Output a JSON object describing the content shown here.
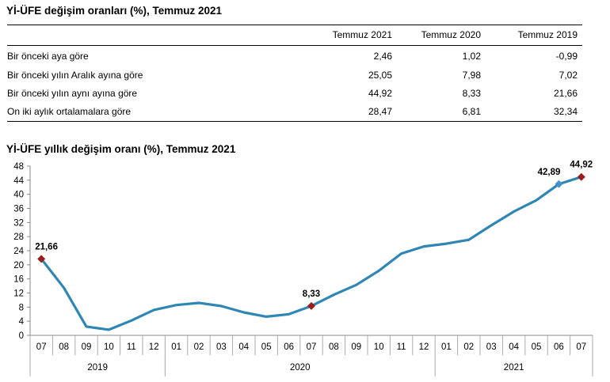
{
  "table": {
    "title": "Yİ-ÜFE değişim oranları (%), Temmuz 2021",
    "headers": [
      "Temmuz 2021",
      "Temmuz 2020",
      "Temmuz 2019"
    ],
    "rows": [
      {
        "label": "Bir önceki aya göre",
        "values": [
          "2,46",
          "1,02",
          "-0,99"
        ]
      },
      {
        "label": "Bir önceki yılın Aralık ayına göre",
        "values": [
          "25,05",
          "7,98",
          "7,02"
        ]
      },
      {
        "label": "Bir önceki yılın aynı ayına göre",
        "values": [
          "44,92",
          "8,33",
          "21,66"
        ]
      },
      {
        "label": "On iki aylık ortalamalara göre",
        "values": [
          "28,47",
          "6,81",
          "32,34"
        ]
      }
    ]
  },
  "chart_data": {
    "type": "line",
    "title": "Yİ-ÜFE yıllık değişim oranı (%), Temmuz 2021",
    "categories": [
      "07",
      "08",
      "09",
      "10",
      "11",
      "12",
      "01",
      "02",
      "03",
      "04",
      "05",
      "06",
      "07",
      "08",
      "09",
      "10",
      "11",
      "12",
      "01",
      "02",
      "03",
      "04",
      "05",
      "06",
      "07"
    ],
    "year_groups": [
      {
        "label": "2019",
        "start": 0,
        "end": 5
      },
      {
        "label": "2020",
        "start": 6,
        "end": 17
      },
      {
        "label": "2021",
        "start": 18,
        "end": 24
      }
    ],
    "values": [
      21.66,
      13.5,
      2.5,
      1.6,
      4.2,
      7.2,
      8.6,
      9.2,
      8.3,
      6.5,
      5.3,
      6.0,
      8.33,
      11.5,
      14.3,
      18.3,
      23.2,
      25.2,
      26.0,
      27.1,
      31.2,
      35.1,
      38.3,
      42.89,
      44.92
    ],
    "ylim": [
      0,
      48
    ],
    "yticks": [
      0,
      4,
      8,
      12,
      16,
      20,
      24,
      28,
      32,
      36,
      40,
      44,
      48
    ],
    "line_color": "#2e86b5",
    "marker_color": "#9b1c1c",
    "highlight_marker_color": "#4a90c8",
    "labeled_points": [
      {
        "index": 0,
        "label": "21,66",
        "marker": "red"
      },
      {
        "index": 12,
        "label": "8,33",
        "marker": "red"
      },
      {
        "index": 23,
        "label": "42,89",
        "marker": "blue"
      },
      {
        "index": 24,
        "label": "44,92",
        "marker": "red"
      }
    ],
    "grid": false
  }
}
